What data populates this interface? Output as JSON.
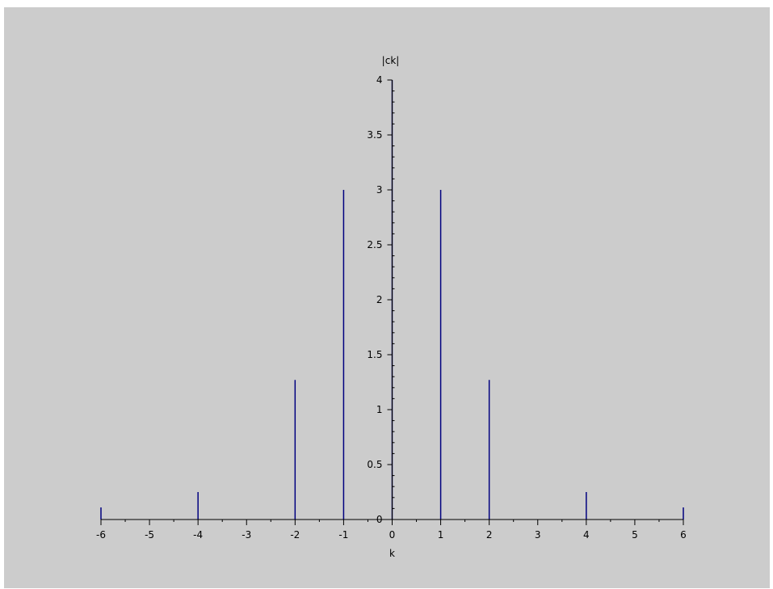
{
  "chart_data": {
    "type": "stem",
    "title": "",
    "xlabel": "k",
    "ylabel": "|ck|",
    "xlim": [
      -6,
      6
    ],
    "ylim": [
      0,
      4
    ],
    "grid": false,
    "x": [
      -6,
      -5,
      -4,
      -3,
      -2,
      -1,
      0,
      1,
      2,
      3,
      4,
      5,
      6
    ],
    "values": [
      0.11,
      0,
      0.25,
      0,
      1.27,
      3,
      4,
      3,
      1.27,
      0,
      0.25,
      0,
      0.11
    ],
    "x_ticks": [
      "-6",
      "-5",
      "-4",
      "-3",
      "-2",
      "-1",
      "0",
      "1",
      "2",
      "3",
      "4",
      "5",
      "6"
    ],
    "x_tick_values": [
      -6,
      -5,
      -4,
      -3,
      -2,
      -1,
      0,
      1,
      2,
      3,
      4,
      5,
      6
    ],
    "y_ticks": [
      "0",
      "0.5",
      "1",
      "1.5",
      "2",
      "2.5",
      "3",
      "3.5",
      "4"
    ],
    "y_tick_values": [
      0,
      0.5,
      1,
      1.5,
      2,
      2.5,
      3,
      3.5,
      4
    ],
    "stem_color": "#00007f",
    "axis_color": "#000000",
    "background_color": "#cccccc"
  }
}
